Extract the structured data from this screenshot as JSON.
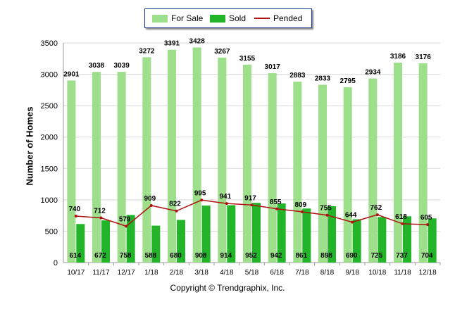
{
  "chart_data": {
    "type": "bar",
    "categories": [
      "10/17",
      "11/17",
      "12/17",
      "1/18",
      "2/18",
      "3/18",
      "4/18",
      "5/18",
      "6/18",
      "7/18",
      "8/18",
      "9/18",
      "10/18",
      "11/18",
      "12/18"
    ],
    "series": [
      {
        "name": "For Sale",
        "type": "bar",
        "color": "#9ddf8a",
        "values": [
          2901,
          3038,
          3039,
          3272,
          3391,
          3428,
          3267,
          3155,
          3017,
          2883,
          2833,
          2795,
          2934,
          3186,
          3176
        ]
      },
      {
        "name": "Sold",
        "type": "bar",
        "color": "#22b52a",
        "values": [
          614,
          672,
          758,
          588,
          680,
          908,
          914,
          952,
          942,
          861,
          898,
          690,
          725,
          737,
          704
        ]
      },
      {
        "name": "Pended",
        "type": "line",
        "color": "#b01010",
        "values": [
          740,
          712,
          579,
          909,
          822,
          995,
          941,
          917,
          855,
          809,
          755,
          644,
          762,
          618,
          605
        ]
      }
    ],
    "ylabel": "Number of Homes",
    "ylim": [
      0,
      3500
    ],
    "yticks": [
      0,
      500,
      1000,
      1500,
      2000,
      2500,
      3000,
      3500
    ],
    "grid": true,
    "legend_position": "top-center"
  },
  "footer": {
    "copyright": "Copyright © Trendgraphix, Inc."
  }
}
